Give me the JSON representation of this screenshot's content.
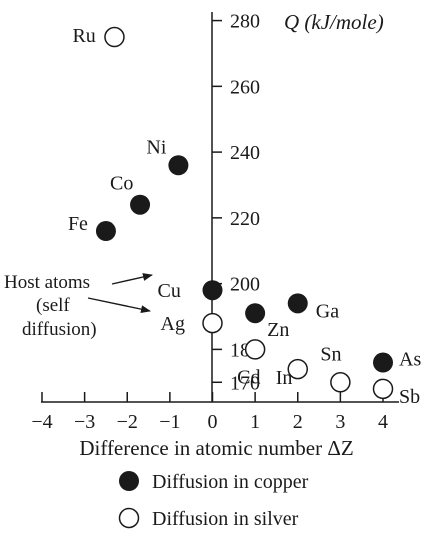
{
  "chart_data": {
    "type": "scatter",
    "title": "",
    "xlabel": "Difference in atomic number ΔZ",
    "ylabel": "Q (kJ/mole)",
    "xlim": [
      -4,
      4
    ],
    "ylim": [
      164,
      282
    ],
    "x_ticks": [
      -4,
      -3,
      -2,
      -1,
      0,
      1,
      2,
      3,
      4
    ],
    "y_ticks": [
      170,
      180,
      200,
      220,
      240,
      260,
      280
    ],
    "grid": false,
    "legend_position": "bottom",
    "series": [
      {
        "name": "Diffusion in copper",
        "marker": "filled-circle",
        "color": "#1a1a1a",
        "points": [
          {
            "label": "Fe",
            "x": -2.5,
            "y": 216
          },
          {
            "label": "Co",
            "x": -1.7,
            "y": 224
          },
          {
            "label": "Ni",
            "x": -0.8,
            "y": 236
          },
          {
            "label": "Cu",
            "x": 0,
            "y": 198
          },
          {
            "label": "Zn",
            "x": 1,
            "y": 191
          },
          {
            "label": "Ga",
            "x": 2,
            "y": 194
          },
          {
            "label": "As",
            "x": 4,
            "y": 176
          }
        ]
      },
      {
        "name": "Diffusion in silver",
        "marker": "open-circle",
        "color": "#1a1a1a",
        "points": [
          {
            "label": "Ru",
            "x": -2.3,
            "y": 275
          },
          {
            "label": "Ag",
            "x": 0,
            "y": 188
          },
          {
            "label": "Cd",
            "x": 1,
            "y": 180
          },
          {
            "label": "In",
            "x": 2,
            "y": 174
          },
          {
            "label": "Sn",
            "x": 3,
            "y": 170
          },
          {
            "label": "Sb",
            "x": 4,
            "y": 168
          }
        ]
      }
    ],
    "annotations": [
      {
        "text": "Host atoms",
        "points_to": "Cu"
      },
      {
        "text": "(self",
        "points_to": "Ag"
      },
      {
        "text": "diffusion)"
      }
    ]
  }
}
